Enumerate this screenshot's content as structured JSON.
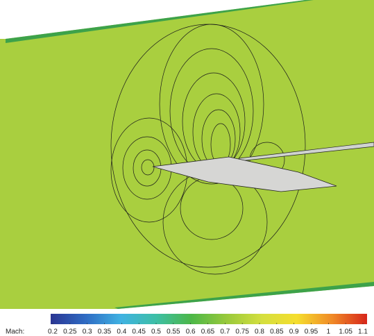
{
  "chart_data": {
    "type": "contour",
    "colorbar_label": "Mach:",
    "clim": [
      0.2,
      1.1
    ],
    "cticks": [
      0.2,
      0.25,
      0.3,
      0.35,
      0.4,
      0.45,
      0.5,
      0.55,
      0.6,
      0.65,
      0.7,
      0.75,
      0.8,
      0.85,
      0.9,
      0.95,
      1,
      1.05,
      1.1
    ],
    "colors": [
      "#2a3593",
      "#2f6cc4",
      "#3fb2e2",
      "#3dbfa6",
      "#4cb748",
      "#98c93b",
      "#d4df3f",
      "#f5de2e",
      "#f08a27",
      "#d7261b"
    ]
  }
}
